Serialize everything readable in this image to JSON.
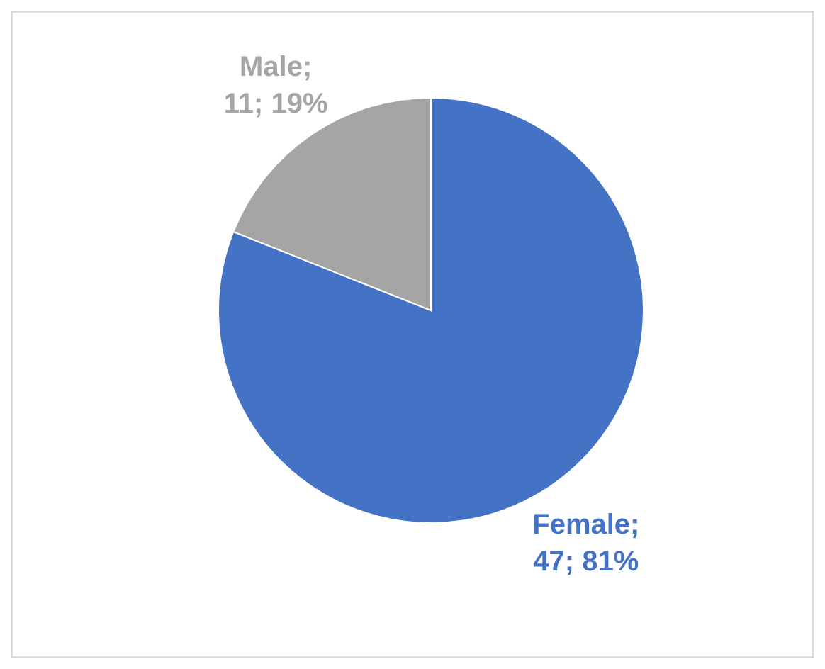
{
  "chart_data": {
    "type": "pie",
    "categories": [
      "Female",
      "Male"
    ],
    "values": [
      47,
      11
    ],
    "colors": [
      "#4472c4",
      "#a5a5a5"
    ],
    "value_labels": [
      ";\n47; 81%",
      ";\n11; 19%"
    ],
    "legend": false
  }
}
